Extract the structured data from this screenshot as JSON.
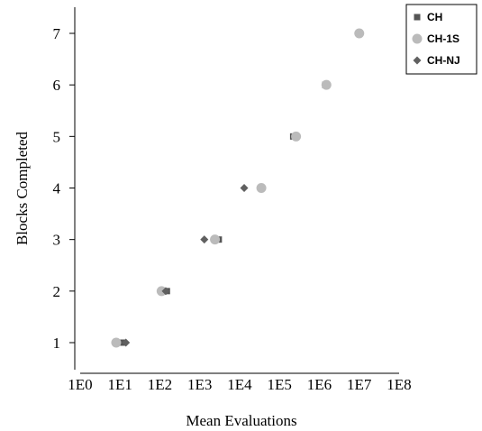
{
  "chart_data": {
    "type": "scatter",
    "title": "",
    "xlabel": "Mean Evaluations",
    "ylabel": "Blocks Completed",
    "x_scale": "log10",
    "xlim": [
      1,
      100000000
    ],
    "ylim": [
      0.5,
      7.5
    ],
    "x_tick_labels": [
      "1E0",
      "1E1",
      "1E2",
      "1E3",
      "1E4",
      "1E5",
      "1E6",
      "1E7",
      "1E8"
    ],
    "y_ticks": [
      1,
      2,
      3,
      4,
      5,
      6,
      7
    ],
    "grid": false,
    "legend_position": "top-right",
    "series": [
      {
        "name": "CH",
        "marker": "square",
        "color": "#555555",
        "points": [
          {
            "x": 12,
            "y": 1
          },
          {
            "x": 150,
            "y": 2
          },
          {
            "x": 3000,
            "y": 3
          },
          {
            "x": 220000,
            "y": 5
          },
          {
            "x": 1400000,
            "y": 6
          },
          {
            "x": 10000000,
            "y": 7
          }
        ]
      },
      {
        "name": "CH-1S",
        "marker": "circle",
        "color": "#bbbbbb",
        "points": [
          {
            "x": 8,
            "y": 1
          },
          {
            "x": 110,
            "y": 2
          },
          {
            "x": 2400,
            "y": 3
          },
          {
            "x": 35000,
            "y": 4
          },
          {
            "x": 260000,
            "y": 5
          },
          {
            "x": 1500000,
            "y": 6
          },
          {
            "x": 10000000,
            "y": 7
          }
        ]
      },
      {
        "name": "CH-NJ",
        "marker": "diamond",
        "color": "#606060",
        "points": [
          {
            "x": 14,
            "y": 1
          },
          {
            "x": 140,
            "y": 2
          },
          {
            "x": 1300,
            "y": 3
          },
          {
            "x": 13000,
            "y": 4
          }
        ]
      }
    ]
  }
}
